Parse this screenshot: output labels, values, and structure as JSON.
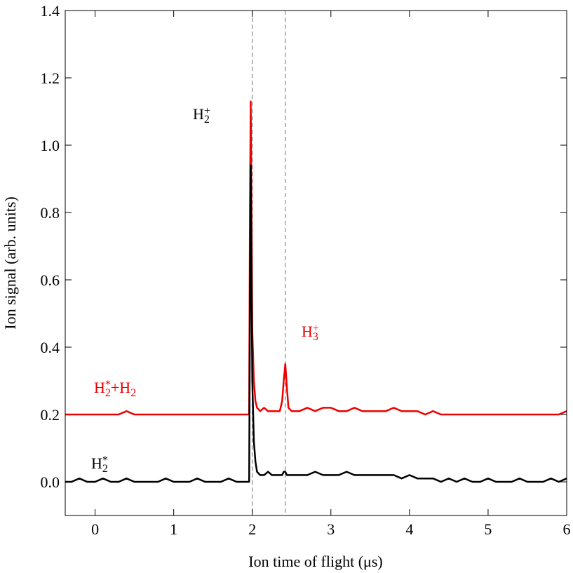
{
  "chart_data": {
    "type": "line",
    "xlabel": "Ion time of flight (μs)",
    "ylabel": "Ion signal (arb. units)",
    "xlim": [
      -0.38,
      6
    ],
    "ylim": [
      -0.1,
      1.4
    ],
    "xticks": [
      0,
      1,
      2,
      3,
      4,
      5,
      6
    ],
    "yticks": [
      {
        "value": 0,
        "label": "0.0"
      },
      0.2,
      0.4,
      0.6,
      0.8,
      {
        "value": 1,
        "label": "1.0"
      },
      1.2,
      1.4
    ],
    "vlines": [
      2.0,
      2.42
    ],
    "x": [
      -0.38,
      -0.3,
      -0.2,
      -0.1,
      0,
      0.1,
      0.2,
      0.3,
      0.4,
      0.5,
      0.6,
      0.7,
      0.8,
      0.9,
      1.0,
      1.1,
      1.2,
      1.3,
      1.4,
      1.5,
      1.6,
      1.7,
      1.8,
      1.9,
      1.94,
      1.96,
      1.97,
      1.98,
      1.99,
      2.0,
      2.02,
      2.04,
      2.06,
      2.1,
      2.15,
      2.2,
      2.25,
      2.3,
      2.35,
      2.38,
      2.4,
      2.42,
      2.44,
      2.46,
      2.5,
      2.6,
      2.7,
      2.8,
      2.9,
      3.0,
      3.1,
      3.2,
      3.3,
      3.4,
      3.5,
      3.6,
      3.7,
      3.8,
      3.9,
      4.0,
      4.1,
      4.2,
      4.3,
      4.4,
      4.5,
      4.6,
      4.7,
      4.8,
      4.9,
      5.0,
      5.1,
      5.2,
      5.3,
      5.4,
      5.5,
      5.6,
      5.7,
      5.8,
      5.9,
      6.0
    ],
    "series": [
      {
        "color": "#ee0000",
        "values": [
          0.2,
          0.2,
          0.2,
          0.2,
          0.2,
          0.2,
          0.2,
          0.2,
          0.21,
          0.2,
          0.2,
          0.2,
          0.2,
          0.2,
          0.2,
          0.2,
          0.2,
          0.2,
          0.2,
          0.2,
          0.2,
          0.2,
          0.2,
          0.2,
          0.2,
          0.2,
          0.8,
          1.13,
          0.8,
          0.45,
          0.3,
          0.24,
          0.22,
          0.21,
          0.22,
          0.21,
          0.21,
          0.21,
          0.21,
          0.24,
          0.3,
          0.35,
          0.28,
          0.22,
          0.21,
          0.21,
          0.22,
          0.21,
          0.22,
          0.22,
          0.21,
          0.21,
          0.22,
          0.21,
          0.21,
          0.21,
          0.21,
          0.22,
          0.21,
          0.21,
          0.21,
          0.2,
          0.21,
          0.2,
          0.2,
          0.2,
          0.2,
          0.2,
          0.2,
          0.2,
          0.2,
          0.2,
          0.2,
          0.2,
          0.2,
          0.2,
          0.2,
          0.2,
          0.2,
          0.21
        ]
      },
      {
        "color": "#000000",
        "values": [
          0.0,
          0.0,
          0.01,
          0.0,
          0.0,
          0.01,
          0.0,
          0.0,
          0.01,
          0.0,
          0.0,
          0.0,
          0.0,
          0.01,
          0.0,
          0.0,
          0.0,
          0.01,
          0.0,
          0.0,
          0.0,
          0.01,
          0.0,
          0.0,
          0.0,
          0.0,
          0.5,
          0.94,
          0.6,
          0.3,
          0.12,
          0.06,
          0.03,
          0.02,
          0.02,
          0.03,
          0.02,
          0.02,
          0.02,
          0.02,
          0.03,
          0.03,
          0.02,
          0.02,
          0.02,
          0.02,
          0.02,
          0.03,
          0.02,
          0.02,
          0.02,
          0.03,
          0.02,
          0.02,
          0.02,
          0.02,
          0.02,
          0.02,
          0.01,
          0.02,
          0.01,
          0.01,
          0.01,
          0.0,
          0.01,
          0.0,
          0.01,
          0.0,
          0.0,
          0.01,
          0.0,
          0.0,
          0.0,
          0.01,
          0.0,
          0.0,
          0.0,
          0.01,
          0.0,
          0.01
        ]
      }
    ],
    "annotations": [
      {
        "color": "#000000",
        "parts": [
          {
            "text": "H"
          },
          {
            "text": "2",
            "pos": "sub"
          },
          {
            "text": "+",
            "pos": "sup"
          }
        ]
      },
      {
        "color": "#ee0000",
        "parts": [
          {
            "text": "H"
          },
          {
            "text": "3",
            "pos": "sub"
          },
          {
            "text": "+",
            "pos": "sup"
          }
        ]
      },
      {
        "color": "#ee0000",
        "parts": [
          {
            "text": "H"
          },
          {
            "text": "2",
            "pos": "sub"
          },
          {
            "text": "*",
            "pos": "sup"
          },
          {
            "text": "+H"
          },
          {
            "text": "2",
            "pos": "sub"
          }
        ]
      },
      {
        "color": "#000000",
        "parts": [
          {
            "text": "H"
          },
          {
            "text": "2",
            "pos": "sub"
          },
          {
            "text": "*",
            "pos": "sup"
          }
        ]
      }
    ]
  }
}
